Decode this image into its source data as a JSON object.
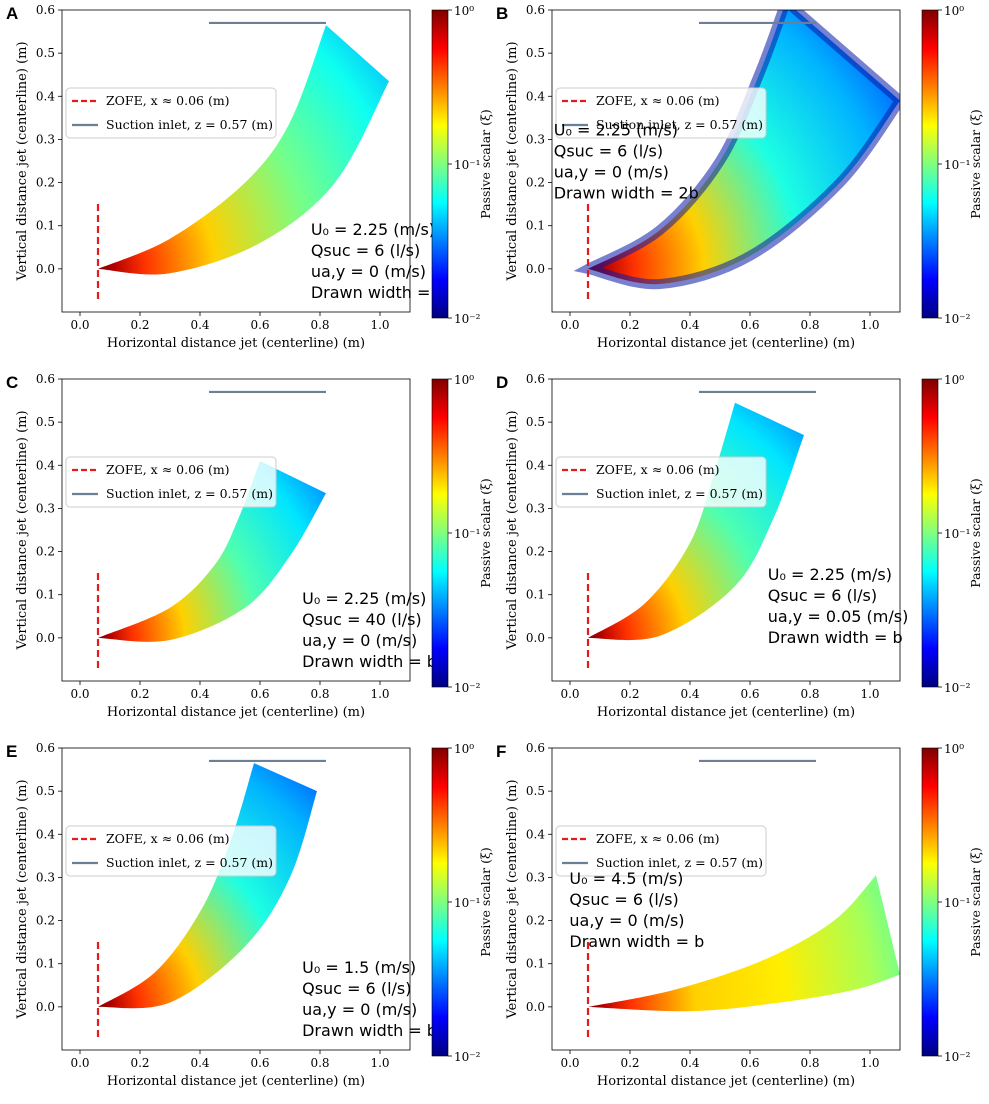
{
  "chart_data": [
    {
      "id": "A",
      "type": "area",
      "panel_label": "A",
      "xlabel": "Horizontal distance jet (centerline) (m)",
      "ylabel": "Vertical distance jet (centerline) (m)",
      "xlim": [
        -0.06,
        1.1
      ],
      "ylim": [
        -0.1,
        0.6
      ],
      "xticks": [
        "0.0",
        "0.2",
        "0.4",
        "0.6",
        "0.8",
        "1.0"
      ],
      "yticks": [
        "0.0",
        "0.1",
        "0.2",
        "0.3",
        "0.4",
        "0.5",
        "0.6"
      ],
      "zofe_x": 0.06,
      "suction_z": 0.57,
      "suction_x": [
        0.43,
        0.82
      ],
      "plume_upper": [
        [
          0.06,
          0.0
        ],
        [
          0.3,
          0.07
        ],
        [
          0.55,
          0.2
        ],
        [
          0.7,
          0.34
        ],
        [
          0.82,
          0.565
        ]
      ],
      "plume_lower": [
        [
          0.06,
          0.0
        ],
        [
          0.3,
          -0.01
        ],
        [
          0.6,
          0.06
        ],
        [
          0.85,
          0.2
        ],
        [
          1.03,
          0.435
        ]
      ],
      "center_value": 0.06,
      "legend": [
        "ZOFE, x ≈ 0.06 (m)",
        "Suction inlet, z = 0.57 (m)"
      ],
      "annotation": {
        "u0": "U₀ = 2.25 (m/s)",
        "qsuc": "Qsuc = 6 (l/s)",
        "uay": "ua,y = 0 (m/s)",
        "width": "Drawn width = b"
      }
    },
    {
      "id": "B",
      "type": "area",
      "panel_label": "B",
      "xlabel": "Horizontal distance jet (centerline) (m)",
      "ylabel": "Vertical distance jet (centerline) (m)",
      "xlim": [
        -0.06,
        1.1
      ],
      "ylim": [
        -0.1,
        0.6
      ],
      "xticks": [
        "0.0",
        "0.2",
        "0.4",
        "0.6",
        "0.8",
        "1.0"
      ],
      "yticks": [
        "0.0",
        "0.1",
        "0.2",
        "0.3",
        "0.4",
        "0.5",
        "0.6"
      ],
      "zofe_x": 0.06,
      "suction_z": 0.57,
      "suction_x": [
        0.43,
        0.82
      ],
      "plume_upper": [
        [
          0.06,
          0.0
        ],
        [
          0.3,
          0.09
        ],
        [
          0.5,
          0.25
        ],
        [
          0.63,
          0.45
        ],
        [
          0.72,
          0.62
        ]
      ],
      "plume_lower": [
        [
          0.06,
          0.0
        ],
        [
          0.3,
          -0.035
        ],
        [
          0.6,
          0.03
        ],
        [
          0.9,
          0.2
        ],
        [
          1.1,
          0.39
        ]
      ],
      "center_value": 0.04,
      "legend": [
        "ZOFE, x ≈ 0.06 (m)",
        "Suction inlet, z = 0.57 (m)"
      ],
      "annotation": {
        "u0": "U₀ = 2.25 (m/s)",
        "qsuc": "Qsuc = 6 (l/s)",
        "uay": "ua,y = 0 (m/s)",
        "width": "Drawn width = 2b"
      }
    },
    {
      "id": "C",
      "type": "area",
      "panel_label": "C",
      "xlabel": "Horizontal distance jet (centerline) (m)",
      "ylabel": "Vertical distance jet (centerline) (m)",
      "xlim": [
        -0.06,
        1.1
      ],
      "ylim": [
        -0.1,
        0.6
      ],
      "xticks": [
        "0.0",
        "0.2",
        "0.4",
        "0.6",
        "0.8",
        "1.0"
      ],
      "yticks": [
        "0.0",
        "0.1",
        "0.2",
        "0.3",
        "0.4",
        "0.5",
        "0.6"
      ],
      "zofe_x": 0.06,
      "suction_z": 0.57,
      "suction_x": [
        0.43,
        0.82
      ],
      "plume_upper": [
        [
          0.06,
          0.0
        ],
        [
          0.3,
          0.07
        ],
        [
          0.45,
          0.17
        ],
        [
          0.53,
          0.28
        ],
        [
          0.6,
          0.41
        ]
      ],
      "plume_lower": [
        [
          0.06,
          0.0
        ],
        [
          0.3,
          -0.005
        ],
        [
          0.55,
          0.07
        ],
        [
          0.7,
          0.19
        ],
        [
          0.82,
          0.335
        ]
      ],
      "center_value": 0.05,
      "legend": [
        "ZOFE, x ≈ 0.06 (m)",
        "Suction inlet, z = 0.57 (m)"
      ],
      "annotation": {
        "u0": "U₀ = 2.25 (m/s)",
        "qsuc": "Qsuc = 40 (l/s)",
        "uay": "ua,y = 0 (m/s)",
        "width": "Drawn width = b"
      }
    },
    {
      "id": "D",
      "type": "area",
      "panel_label": "D",
      "xlabel": "Horizontal distance jet (centerline) (m)",
      "ylabel": "Vertical distance jet (centerline) (m)",
      "xlim": [
        -0.06,
        1.1
      ],
      "ylim": [
        -0.1,
        0.6
      ],
      "xticks": [
        "0.0",
        "0.2",
        "0.4",
        "0.6",
        "0.8",
        "1.0"
      ],
      "yticks": [
        "0.0",
        "0.1",
        "0.2",
        "0.3",
        "0.4",
        "0.5",
        "0.6"
      ],
      "zofe_x": 0.06,
      "suction_z": 0.57,
      "suction_x": [
        0.43,
        0.82
      ],
      "plume_upper": [
        [
          0.06,
          0.0
        ],
        [
          0.25,
          0.08
        ],
        [
          0.4,
          0.22
        ],
        [
          0.48,
          0.38
        ],
        [
          0.55,
          0.545
        ]
      ],
      "plume_lower": [
        [
          0.06,
          0.0
        ],
        [
          0.3,
          0.005
        ],
        [
          0.55,
          0.12
        ],
        [
          0.68,
          0.28
        ],
        [
          0.78,
          0.47
        ]
      ],
      "center_value": 0.05,
      "legend": [
        "ZOFE, x ≈ 0.06 (m)",
        "Suction inlet, z = 0.57 (m)"
      ],
      "annotation": {
        "u0": "U₀ = 2.25 (m/s)",
        "qsuc": "Qsuc = 6 (l/s)",
        "uay": "ua,y = 0.05 (m/s)",
        "width": "Drawn width = b"
      }
    },
    {
      "id": "E",
      "type": "area",
      "panel_label": "E",
      "xlabel": "Horizontal distance jet (centerline) (m)",
      "ylabel": "Vertical distance jet (centerline) (m)",
      "xlim": [
        -0.06,
        1.1
      ],
      "ylim": [
        -0.1,
        0.6
      ],
      "xticks": [
        "0.0",
        "0.2",
        "0.4",
        "0.6",
        "0.8",
        "1.0"
      ],
      "yticks": [
        "0.0",
        "0.1",
        "0.2",
        "0.3",
        "0.4",
        "0.5",
        "0.6"
      ],
      "zofe_x": 0.06,
      "suction_z": 0.57,
      "suction_x": [
        0.43,
        0.82
      ],
      "plume_upper": [
        [
          0.06,
          0.0
        ],
        [
          0.25,
          0.08
        ],
        [
          0.4,
          0.22
        ],
        [
          0.5,
          0.38
        ],
        [
          0.58,
          0.565
        ]
      ],
      "plume_lower": [
        [
          0.06,
          0.0
        ],
        [
          0.3,
          0.01
        ],
        [
          0.55,
          0.14
        ],
        [
          0.7,
          0.3
        ],
        [
          0.79,
          0.5
        ]
      ],
      "center_value": 0.04,
      "legend": [
        "ZOFE, x ≈ 0.06 (m)",
        "Suction inlet, z = 0.57 (m)"
      ],
      "annotation": {
        "u0": "U₀ = 1.5 (m/s)",
        "qsuc": "Qsuc = 6 (l/s)",
        "uay": "ua,y = 0 (m/s)",
        "width": "Drawn width = b"
      }
    },
    {
      "id": "F",
      "type": "area",
      "panel_label": "F",
      "xlabel": "Horizontal distance jet (centerline) (m)",
      "ylabel": "Vertical distance jet (centerline) (m)",
      "xlim": [
        -0.06,
        1.1
      ],
      "ylim": [
        -0.1,
        0.6
      ],
      "xticks": [
        "0.0",
        "0.2",
        "0.4",
        "0.6",
        "0.8",
        "1.0"
      ],
      "yticks": [
        "0.0",
        "0.1",
        "0.2",
        "0.3",
        "0.4",
        "0.5",
        "0.6"
      ],
      "zofe_x": 0.06,
      "suction_z": 0.57,
      "suction_x": [
        0.43,
        0.82
      ],
      "plume_upper": [
        [
          0.06,
          0.0
        ],
        [
          0.35,
          0.04
        ],
        [
          0.65,
          0.11
        ],
        [
          0.88,
          0.2
        ],
        [
          1.02,
          0.305
        ]
      ],
      "plume_lower": [
        [
          0.06,
          0.0
        ],
        [
          0.4,
          -0.01
        ],
        [
          0.7,
          0.01
        ],
        [
          0.95,
          0.04
        ],
        [
          1.1,
          0.075
        ]
      ],
      "center_value": 0.12,
      "legend": [
        "ZOFE, x ≈ 0.06 (m)",
        "Suction inlet, z = 0.57 (m)"
      ],
      "annotation": {
        "u0": "U₀ = 4.5 (m/s)",
        "qsuc": "Qsuc = 6 (l/s)",
        "uay": "ua,y = 0 (m/s)",
        "width": "Drawn width = b"
      }
    }
  ],
  "colorbar": {
    "label": "Passive scalar (ξ)",
    "ticks": [
      {
        "value": 1,
        "label": "10⁰"
      },
      {
        "value": 0.1,
        "label": "10⁻¹"
      },
      {
        "value": 0.01,
        "label": "10⁻²"
      }
    ],
    "scale": "log",
    "range": [
      0.01,
      1
    ]
  },
  "colors": {
    "zofe_line": "#e41a1c",
    "suction_line": "#6b7f95",
    "cmap": [
      "#00007f",
      "#0000ff",
      "#007fff",
      "#00ffff",
      "#7fff7f",
      "#ffff00",
      "#ff7f00",
      "#ff0000",
      "#7f0000"
    ]
  }
}
